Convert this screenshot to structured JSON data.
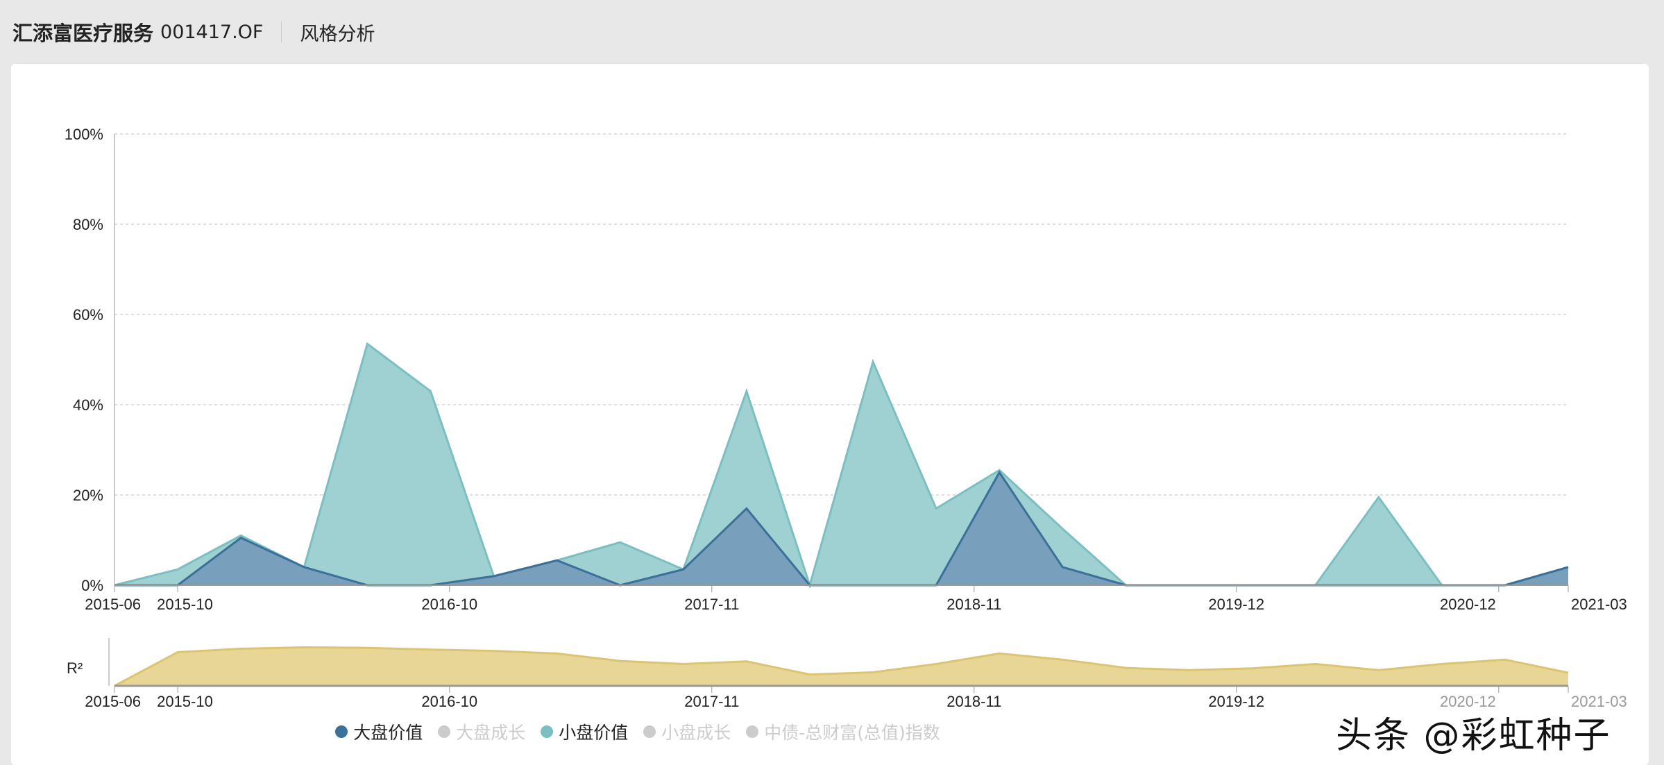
{
  "header": {
    "title": "汇添富医疗服务",
    "code": "001417.OF",
    "section": "风格分析"
  },
  "watermark": "头条 @彩虹种子",
  "chart_data": [
    {
      "type": "area",
      "title": "",
      "ylabel": "",
      "ylim": [
        0,
        100
      ],
      "yticks": [
        "0%",
        "20%",
        "40%",
        "60%",
        "80%",
        "100%"
      ],
      "xticks": [
        {
          "label": "2015-06",
          "pos": 0
        },
        {
          "label": "2015-10",
          "pos": 1
        },
        {
          "label": "2016-10",
          "pos": 5.3
        },
        {
          "label": "2017-11",
          "pos": 9.45
        },
        {
          "label": "2018-11",
          "pos": 13.6
        },
        {
          "label": "2019-12",
          "pos": 17.75
        },
        {
          "label": "2020-12",
          "pos": 21.9
        },
        {
          "label": "2021-03",
          "pos": 23
        }
      ],
      "series": [
        {
          "name": "小盘价值",
          "color": "#7bbfc1",
          "fill": "#a0d1d2",
          "values": [
            0,
            3.5,
            11,
            4,
            53.5,
            43,
            2,
            5.5,
            9.5,
            3.5,
            43,
            0,
            49.5,
            17,
            25.5,
            12.5,
            0,
            0,
            0,
            0,
            19.5,
            0,
            0,
            4
          ]
        },
        {
          "name": "大盘价值",
          "color": "#3a7099",
          "fill": "#789fbc",
          "values": [
            0,
            0,
            10.5,
            4,
            0,
            0,
            2,
            5.5,
            0,
            3.5,
            17,
            0,
            0,
            0,
            25,
            4,
            0,
            0,
            0,
            0,
            0,
            0,
            0,
            4
          ]
        }
      ]
    },
    {
      "type": "area",
      "ylabel": "R²",
      "ylim": [
        0,
        1
      ],
      "xticks": [
        {
          "label": "2015-06",
          "pos": 0
        },
        {
          "label": "2015-10",
          "pos": 1
        },
        {
          "label": "2016-10",
          "pos": 5.3
        },
        {
          "label": "2017-11",
          "pos": 9.45
        },
        {
          "label": "2018-11",
          "pos": 13.6
        },
        {
          "label": "2019-12",
          "pos": 17.75
        },
        {
          "label": "2020-12",
          "pos": 21.9
        },
        {
          "label": "2021-03",
          "pos": 23
        }
      ],
      "series": [
        {
          "name": "R²",
          "color": "#dcc470",
          "fill": "#e8d697",
          "values": [
            0,
            0.77,
            0.85,
            0.88,
            0.87,
            0.83,
            0.8,
            0.74,
            0.57,
            0.5,
            0.56,
            0.26,
            0.31,
            0.5,
            0.74,
            0.6,
            0.41,
            0.36,
            0.4,
            0.5,
            0.36,
            0.5,
            0.6,
            0.3
          ]
        }
      ]
    }
  ],
  "legend": [
    {
      "label": "大盘价值",
      "color": "#3a7099",
      "active": true
    },
    {
      "label": "大盘成长",
      "color": "#cccccc",
      "active": false
    },
    {
      "label": "小盘价值",
      "color": "#7bbfc1",
      "active": true
    },
    {
      "label": "小盘成长",
      "color": "#cccccc",
      "active": false
    },
    {
      "label": "中债-总财富(总值)指数",
      "color": "#cccccc",
      "active": false
    }
  ]
}
